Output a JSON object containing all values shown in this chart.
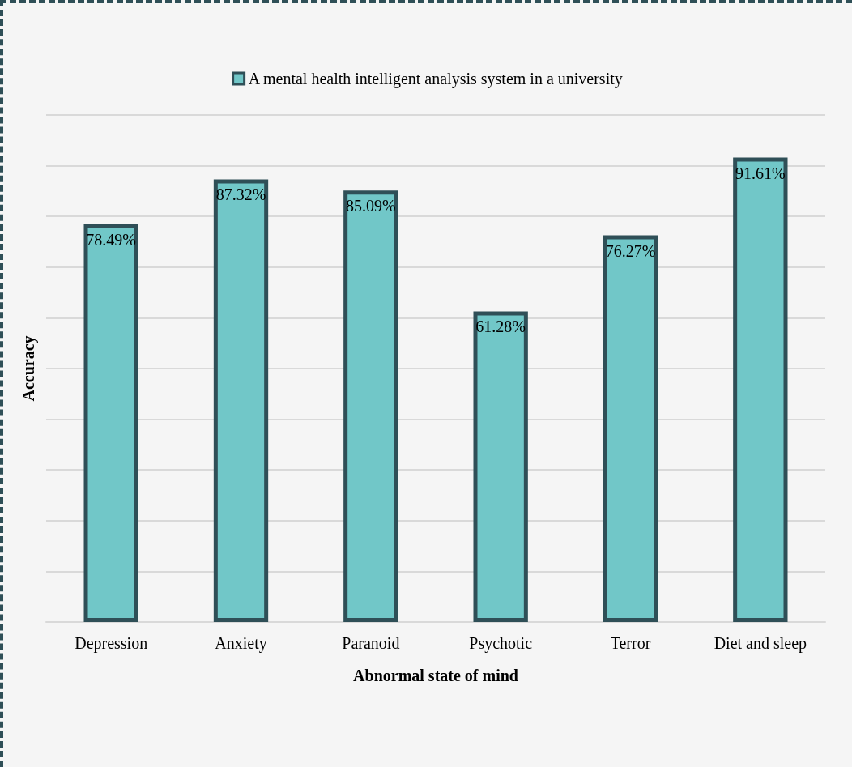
{
  "chart_data": {
    "type": "bar",
    "xlabel": "Abnormal state of mind",
    "ylabel": "Accuracy",
    "categories": [
      "Depression",
      "Anxiety",
      "Paranoid",
      "Psychotic",
      "Terror",
      "Diet and sleep"
    ],
    "series": [
      {
        "name": "A mental health intelligent analysis system in a university",
        "color": "#71c7c8",
        "values": [
          78.49,
          87.32,
          85.09,
          61.28,
          76.27,
          91.61
        ],
        "value_labels": [
          "78.49%",
          "87.32%",
          "85.09%",
          "61.28%",
          "76.27%",
          "91.61%"
        ]
      }
    ],
    "ylim": [
      0,
      100
    ],
    "tick_labels": "x",
    "grid": "y",
    "legend": "top"
  }
}
